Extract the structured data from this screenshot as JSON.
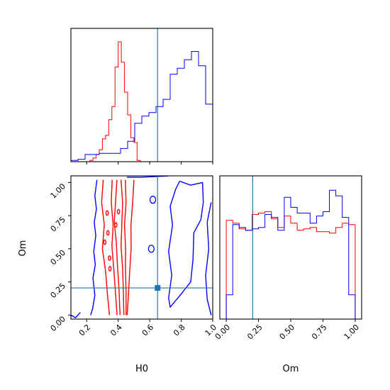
{
  "colors": {
    "series_a": "#ff0000",
    "series_b": "#0000ff",
    "truth": "#1f77b4",
    "frame": "#000000"
  },
  "chart_data": [
    {
      "type": "histogram",
      "panel": "H0-marginal",
      "xlim": [
        0.1,
        1.0
      ],
      "tick_values": [
        0.2,
        0.4,
        0.6,
        0.8,
        1.0
      ],
      "truth": 0.65,
      "bin_edges": [
        0.1,
        0.145,
        0.19,
        0.235,
        0.28,
        0.325,
        0.37,
        0.415,
        0.46,
        0.505,
        0.55,
        0.595,
        0.64,
        0.685,
        0.73,
        0.775,
        0.82,
        0.865,
        0.91,
        0.955,
        1.0
      ],
      "series": [
        {
          "color_key": "series_a",
          "bins": [
            [
              0.22,
              0.24,
              0.01
            ],
            [
              0.24,
              0.26,
              0.03
            ],
            [
              0.26,
              0.28,
              0.06
            ],
            [
              0.28,
              0.3,
              0.1
            ],
            [
              0.3,
              0.32,
              0.19
            ],
            [
              0.32,
              0.34,
              0.22
            ],
            [
              0.34,
              0.36,
              0.35
            ],
            [
              0.36,
              0.38,
              0.46
            ],
            [
              0.38,
              0.4,
              0.79
            ],
            [
              0.4,
              0.42,
              1.0
            ],
            [
              0.42,
              0.44,
              0.83
            ],
            [
              0.44,
              0.46,
              0.58
            ],
            [
              0.46,
              0.48,
              0.39
            ],
            [
              0.48,
              0.5,
              0.2
            ],
            [
              0.5,
              0.52,
              0.16
            ],
            [
              0.52,
              0.54,
              0.01
            ]
          ]
        },
        {
          "color_key": "series_b",
          "bins": [
            [
              0.1,
              0.145,
              0.01
            ],
            [
              0.145,
              0.19,
              0.02
            ],
            [
              0.19,
              0.235,
              0.06
            ],
            [
              0.235,
              0.28,
              0.06
            ],
            [
              0.28,
              0.325,
              0.07
            ],
            [
              0.325,
              0.37,
              0.07
            ],
            [
              0.37,
              0.415,
              0.07
            ],
            [
              0.415,
              0.46,
              0.11
            ],
            [
              0.46,
              0.505,
              0.17
            ],
            [
              0.505,
              0.55,
              0.32
            ],
            [
              0.55,
              0.595,
              0.38
            ],
            [
              0.595,
              0.64,
              0.41
            ],
            [
              0.64,
              0.685,
              0.46
            ],
            [
              0.685,
              0.73,
              0.52
            ],
            [
              0.73,
              0.775,
              0.73
            ],
            [
              0.775,
              0.82,
              0.78
            ],
            [
              0.82,
              0.865,
              0.85
            ],
            [
              0.865,
              0.91,
              0.92
            ],
            [
              0.91,
              0.955,
              0.8
            ],
            [
              0.955,
              1.0,
              0.48
            ]
          ]
        }
      ]
    },
    {
      "type": "contour",
      "panel": "H0-Om-joint",
      "xlabel": "H0",
      "ylabel": "Om",
      "xlim": [
        0.1,
        1.0
      ],
      "ylim": [
        -0.03,
        1.05
      ],
      "x_ticks": [
        "0.2",
        "0.4",
        "0.6",
        "0.8",
        "1.0"
      ],
      "x_tick_values": [
        0.2,
        0.4,
        0.6,
        0.8,
        1.0
      ],
      "y_ticks": [
        "0.00",
        "0.25",
        "0.50",
        "0.75",
        "1.00"
      ],
      "y_tick_values": [
        0.0,
        0.25,
        0.5,
        0.75,
        1.0
      ],
      "truth": {
        "x": 0.65,
        "y": 0.205
      },
      "series": [
        {
          "color_key": "series_a",
          "contours": [
            [
              [
                0.305,
                1.02
              ],
              [
                0.295,
                0.85
              ],
              [
                0.312,
                0.68
              ],
              [
                0.3,
                0.5
              ],
              [
                0.32,
                0.33
              ],
              [
                0.332,
                0.15
              ],
              [
                0.345,
                0.0
              ]
            ],
            [
              [
                0.362,
                1.02
              ],
              [
                0.356,
                0.85
              ],
              [
                0.368,
                0.68
              ],
              [
                0.36,
                0.52
              ],
              [
                0.372,
                0.35
              ],
              [
                0.382,
                0.18
              ],
              [
                0.393,
                0.0
              ]
            ],
            [
              [
                0.392,
                1.02
              ],
              [
                0.385,
                0.88
              ],
              [
                0.375,
                0.7
              ],
              [
                0.388,
                0.55
              ],
              [
                0.395,
                0.38
              ],
              [
                0.405,
                0.2
              ],
              [
                0.412,
                0.0
              ]
            ],
            [
              [
                0.418,
                1.02
              ],
              [
                0.428,
                0.85
              ],
              [
                0.423,
                0.68
              ],
              [
                0.418,
                0.52
              ],
              [
                0.428,
                0.35
              ],
              [
                0.433,
                0.18
              ],
              [
                0.436,
                0.0
              ]
            ],
            [
              [
                0.445,
                1.02
              ],
              [
                0.45,
                0.85
              ],
              [
                0.44,
                0.68
              ],
              [
                0.447,
                0.5
              ],
              [
                0.446,
                0.35
              ],
              [
                0.45,
                0.18
              ],
              [
                0.45,
                0.0
              ]
            ],
            [
              [
                0.5,
                1.02
              ],
              [
                0.492,
                0.85
              ],
              [
                0.481,
                0.68
              ],
              [
                0.482,
                0.5
              ],
              [
                0.473,
                0.33
              ],
              [
                0.465,
                0.15
              ],
              [
                0.457,
                0.0
              ]
            ]
          ]
        },
        {
          "color_key": "series_b",
          "contours": [
            [
              [
                0.265,
                1.02
              ],
              [
                0.252,
                0.9
              ],
              [
                0.262,
                0.8
              ],
              [
                0.248,
                0.7
              ],
              [
                0.258,
                0.6
              ],
              [
                0.245,
                0.48
              ],
              [
                0.255,
                0.38
              ],
              [
                0.24,
                0.28
              ],
              [
                0.252,
                0.15
              ],
              [
                0.238,
                0.05
              ],
              [
                0.225,
                0.0
              ]
            ],
            [
              [
                0.455,
                1.04
              ],
              [
                0.545,
                1.04
              ],
              [
                0.64,
                1.045
              ],
              [
                0.72,
                1.05
              ]
            ],
            [
              [
                0.79,
                1.01
              ],
              [
                0.86,
                0.98
              ],
              [
                0.935,
                1.0
              ],
              [
                0.94,
                0.85
              ],
              [
                0.925,
                0.72
              ],
              [
                0.88,
                0.62
              ],
              [
                0.875,
                0.42
              ],
              [
                0.86,
                0.25
              ],
              [
                0.8,
                0.16
              ],
              [
                0.73,
                0.06
              ],
              [
                0.72,
                0.13
              ],
              [
                0.74,
                0.3
              ],
              [
                0.72,
                0.48
              ],
              [
                0.745,
                0.68
              ],
              [
                0.73,
                0.82
              ],
              [
                0.765,
                0.95
              ],
              [
                0.79,
                1.01
              ]
            ],
            [
              [
                0.99,
                0.85
              ],
              [
                0.965,
                0.7
              ],
              [
                0.975,
                0.5
              ],
              [
                0.955,
                0.3
              ],
              [
                0.965,
                0.12
              ],
              [
                0.99,
                0.0
              ]
            ],
            [
              [
                0.1,
                0.0
              ],
              [
                0.13,
                -0.02
              ],
              [
                0.16,
                0.02
              ]
            ]
          ]
        }
      ]
    },
    {
      "type": "histogram",
      "panel": "Om-marginal",
      "xlabel": "Om",
      "xlim": [
        -0.05,
        1.05
      ],
      "x_ticks": [
        "0.00",
        "0.25",
        "0.50",
        "0.75",
        "1.00"
      ],
      "x_tick_values": [
        0.0,
        0.25,
        0.5,
        0.75,
        1.0
      ],
      "truth": 0.205,
      "bin_edges": [
        0.0,
        0.05,
        0.1,
        0.15,
        0.2,
        0.25,
        0.3,
        0.35,
        0.4,
        0.45,
        0.5,
        0.55,
        0.6,
        0.65,
        0.7,
        0.75,
        0.8,
        0.85,
        0.9,
        0.95,
        1.0
      ],
      "series": [
        {
          "color_key": "series_a",
          "values": [
            0.69,
            0.67,
            0.63,
            0.62,
            0.73,
            0.74,
            0.75,
            0.7,
            0.64,
            0.72,
            0.67,
            0.62,
            0.63,
            0.64,
            0.61,
            0.61,
            0.6,
            0.64,
            0.67,
            0.66
          ]
        },
        {
          "color_key": "series_b",
          "values": [
            0.17,
            0.66,
            0.64,
            0.62,
            0.63,
            0.64,
            0.73,
            0.71,
            0.62,
            0.85,
            0.78,
            0.74,
            0.74,
            0.67,
            0.72,
            0.75,
            0.9,
            0.86,
            0.71,
            0.17
          ]
        }
      ]
    }
  ]
}
